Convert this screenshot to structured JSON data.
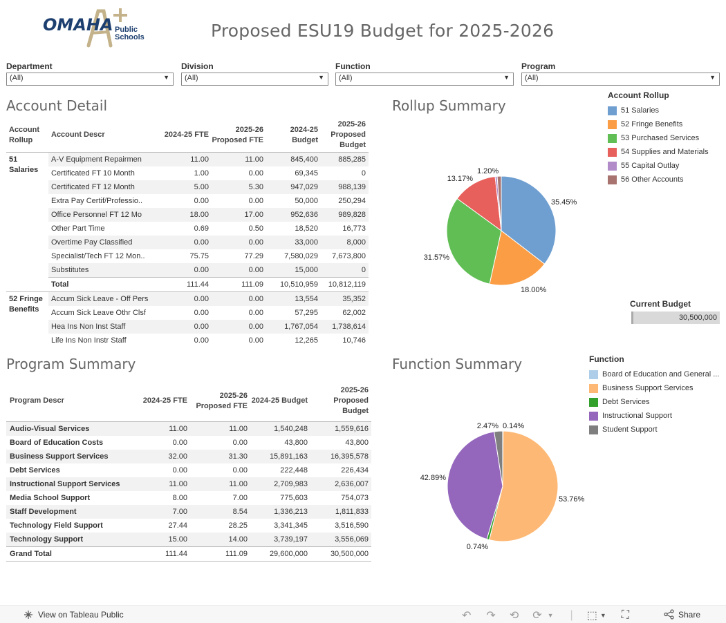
{
  "logo": {
    "brand": "OMAHA",
    "line1": "Public",
    "line2": "Schools",
    "plus": "+"
  },
  "title": "Proposed ESU19 Budget for 2025-2026",
  "filters": [
    {
      "label": "Department",
      "value": "(All)"
    },
    {
      "label": "Division",
      "value": "(All)"
    },
    {
      "label": "Function",
      "value": "(All)"
    },
    {
      "label": "Program",
      "value": "(All)"
    }
  ],
  "account_detail": {
    "title": "Account Detail",
    "headers": [
      "Account Rollup",
      "Account Descr",
      "2024-25 FTE",
      "2025-26 Proposed FTE",
      "2024-25 Budget",
      "2025-26 Proposed Budget"
    ],
    "groups": [
      {
        "rollup": "51 Salaries",
        "rows": [
          [
            "A-V Equipment Repairmen",
            "11.00",
            "11.00",
            "845,400",
            "885,285"
          ],
          [
            "Certificated FT 10 Month",
            "1.00",
            "0.00",
            "69,345",
            "0"
          ],
          [
            "Certificated FT 12 Month",
            "5.00",
            "5.30",
            "947,029",
            "988,139"
          ],
          [
            "Extra Pay Certif/Professio..",
            "0.00",
            "0.00",
            "50,000",
            "250,294"
          ],
          [
            "Office Personnel FT 12 Mo",
            "18.00",
            "17.00",
            "952,636",
            "989,828"
          ],
          [
            "Other Part Time",
            "0.69",
            "0.50",
            "18,520",
            "16,773"
          ],
          [
            "Overtime Pay Classified",
            "0.00",
            "0.00",
            "33,000",
            "8,000"
          ],
          [
            "Specialist/Tech FT 12 Mon..",
            "75.75",
            "77.29",
            "7,580,029",
            "7,673,800"
          ],
          [
            "Substitutes",
            "0.00",
            "0.00",
            "15,000",
            "0"
          ]
        ],
        "total": [
          "Total",
          "111.44",
          "111.09",
          "10,510,959",
          "10,812,119"
        ]
      },
      {
        "rollup": "52 Fringe Benefits",
        "rows": [
          [
            "Accum Sick Leave - Off Pers",
            "0.00",
            "0.00",
            "13,554",
            "35,352"
          ],
          [
            "Accum Sick Leave Othr Clsf",
            "0.00",
            "0.00",
            "57,295",
            "62,002"
          ],
          [
            "Hea Ins Non Inst Staff",
            "0.00",
            "0.00",
            "1,767,054",
            "1,738,614"
          ],
          [
            "Life Ins Non Instr Staff",
            "0.00",
            "0.00",
            "12,265",
            "10,746"
          ]
        ]
      }
    ]
  },
  "program_summary": {
    "title": "Program Summary",
    "headers": [
      "Program Descr",
      "2024-25 FTE",
      "2025-26 Proposed FTE",
      "2024-25 Budget",
      "2025-26 Proposed Budget"
    ],
    "rows": [
      [
        "Audio-Visual Services",
        "11.00",
        "11.00",
        "1,540,248",
        "1,559,616"
      ],
      [
        "Board of Education Costs",
        "0.00",
        "0.00",
        "43,800",
        "43,800"
      ],
      [
        "Business Support Services",
        "32.00",
        "31.30",
        "15,891,163",
        "16,395,578"
      ],
      [
        "Debt Services",
        "0.00",
        "0.00",
        "222,448",
        "226,434"
      ],
      [
        "Instructional Support Services",
        "11.00",
        "11.00",
        "2,709,983",
        "2,636,007"
      ],
      [
        "Media School Support",
        "8.00",
        "7.00",
        "775,603",
        "754,073"
      ],
      [
        "Staff Development",
        "7.00",
        "8.54",
        "1,336,213",
        "1,811,833"
      ],
      [
        "Technology Field Support",
        "27.44",
        "28.25",
        "3,341,345",
        "3,516,590"
      ],
      [
        "Technology Support",
        "15.00",
        "14.00",
        "3,739,197",
        "3,556,069"
      ]
    ],
    "grand_total": [
      "Grand Total",
      "111.44",
      "111.09",
      "29,600,000",
      "30,500,000"
    ]
  },
  "rollup_summary": {
    "title": "Rollup Summary",
    "legend_title": "Account Rollup",
    "legend": [
      {
        "label": "51 Salaries",
        "color": "#6f9fd1"
      },
      {
        "label": "52 Fringe Benefits",
        "color": "#fa9d45"
      },
      {
        "label": "53 Purchased Services",
        "color": "#61be55"
      },
      {
        "label": "54 Supplies and Materials",
        "color": "#e8605b"
      },
      {
        "label": "55 Capital Outlay",
        "color": "#b18cc9"
      },
      {
        "label": "56 Other Accounts",
        "color": "#a8736e"
      }
    ]
  },
  "function_summary": {
    "title": "Function Summary",
    "legend_title": "Function",
    "legend": [
      {
        "label": "Board of Education and General ...",
        "color": "#aecde8"
      },
      {
        "label": "Business Support Services",
        "color": "#fdb875"
      },
      {
        "label": "Debt Services",
        "color": "#34a02c"
      },
      {
        "label": "Instructional Support",
        "color": "#9467bd"
      },
      {
        "label": "Student Support",
        "color": "#7f7f7f"
      }
    ]
  },
  "current_budget": {
    "label": "Current Budget",
    "value": "30,500,000"
  },
  "chart_data": [
    {
      "type": "pie",
      "title": "Rollup Summary",
      "categories": [
        "51 Salaries",
        "52 Fringe Benefits",
        "53 Purchased Services",
        "54 Supplies and Materials",
        "55 Capital Outlay",
        "56 Other Accounts"
      ],
      "values": [
        35.45,
        18.0,
        31.57,
        13.17,
        0.61,
        1.2
      ],
      "labels": [
        "35.45%",
        "18.00%",
        "31.57%",
        "13.17%",
        "",
        "1.20%"
      ],
      "colors": [
        "#6f9fd1",
        "#fa9d45",
        "#61be55",
        "#e8605b",
        "#b18cc9",
        "#a8736e"
      ]
    },
    {
      "type": "pie",
      "title": "Function Summary",
      "categories": [
        "Board of Education and General ...",
        "Business Support Services",
        "Debt Services",
        "Instructional Support",
        "Student Support"
      ],
      "values": [
        0.14,
        53.76,
        0.74,
        42.89,
        2.47
      ],
      "labels": [
        "0.14%",
        "53.76%",
        "0.74%",
        "42.89%",
        "2.47%"
      ],
      "colors": [
        "#aecde8",
        "#fdb875",
        "#34a02c",
        "#9467bd",
        "#7f7f7f"
      ]
    }
  ],
  "footer": {
    "view_link": "View on Tableau Public",
    "share": "Share"
  }
}
